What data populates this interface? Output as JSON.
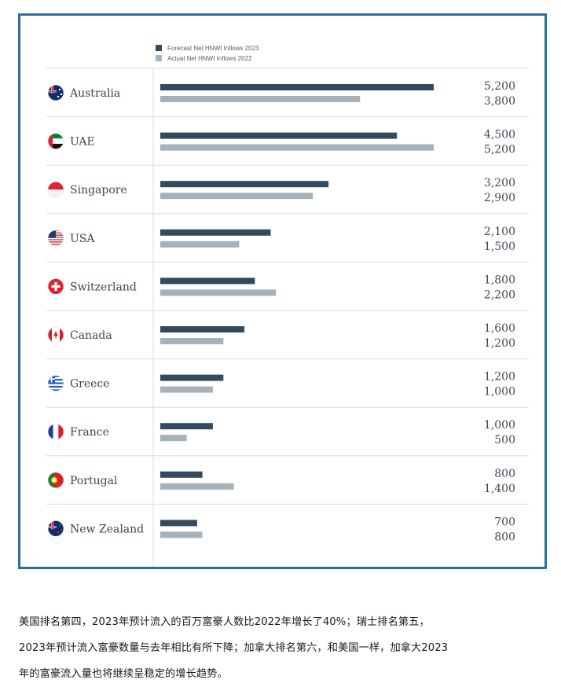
{
  "chart_data": {
    "type": "bar",
    "orientation": "horizontal",
    "legend": [
      {
        "label": "Forecast Net HNWI Inflows 2023",
        "color": "#34495e"
      },
      {
        "label": "Actual Net HNWI Inflows 2022",
        "color": "#a7b1b8"
      }
    ],
    "legend_position": "top",
    "categories": [
      "Australia",
      "UAE",
      "Singapore",
      "USA",
      "Switzerland",
      "Canada",
      "Greece",
      "France",
      "Portugal",
      "New Zealand"
    ],
    "series": [
      {
        "name": "Forecast Net HNWI Inflows 2023",
        "values": [
          5200,
          4500,
          3200,
          2100,
          1800,
          1600,
          1200,
          1000,
          800,
          700
        ],
        "labels": [
          "5,200",
          "4,500",
          "3,200",
          "2,100",
          "1,800",
          "1,600",
          "1,200",
          "1,000",
          "800",
          "700"
        ]
      },
      {
        "name": "Actual Net HNWI Inflows 2022",
        "values": [
          3800,
          5200,
          2900,
          1500,
          2200,
          1200,
          1000,
          500,
          1400,
          800
        ],
        "labels": [
          "3,800",
          "5,200",
          "2,900",
          "1,500",
          "2,200",
          "1,200",
          "1,000",
          "500",
          "1,400",
          "800"
        ]
      }
    ],
    "flags": [
      "australia-flag-icon",
      "uae-flag-icon",
      "singapore-flag-icon",
      "usa-flag-icon",
      "switzerland-flag-icon",
      "canada-flag-icon",
      "greece-flag-icon",
      "france-flag-icon",
      "portugal-flag-icon",
      "new-zealand-flag-icon"
    ],
    "xlim": [
      0,
      5200
    ],
    "grid": false
  },
  "colors": {
    "frame_border": "#2e6da4",
    "forecast_bar": "#34495e",
    "actual_bar": "#a7b1b8",
    "row_divider": "#d9dde0"
  },
  "caption": {
    "line1": "美国排名第四，2023年预计流入的百万富豪人数比2022年增长了40%；瑞士排名第五，",
    "line2": "2023年预计流入富豪数量与去年相比有所下降；加拿大排名第六，和美国一样，加拿大2023",
    "line3": "年的富豪流入量也将继续呈稳定的增长趋势。"
  }
}
